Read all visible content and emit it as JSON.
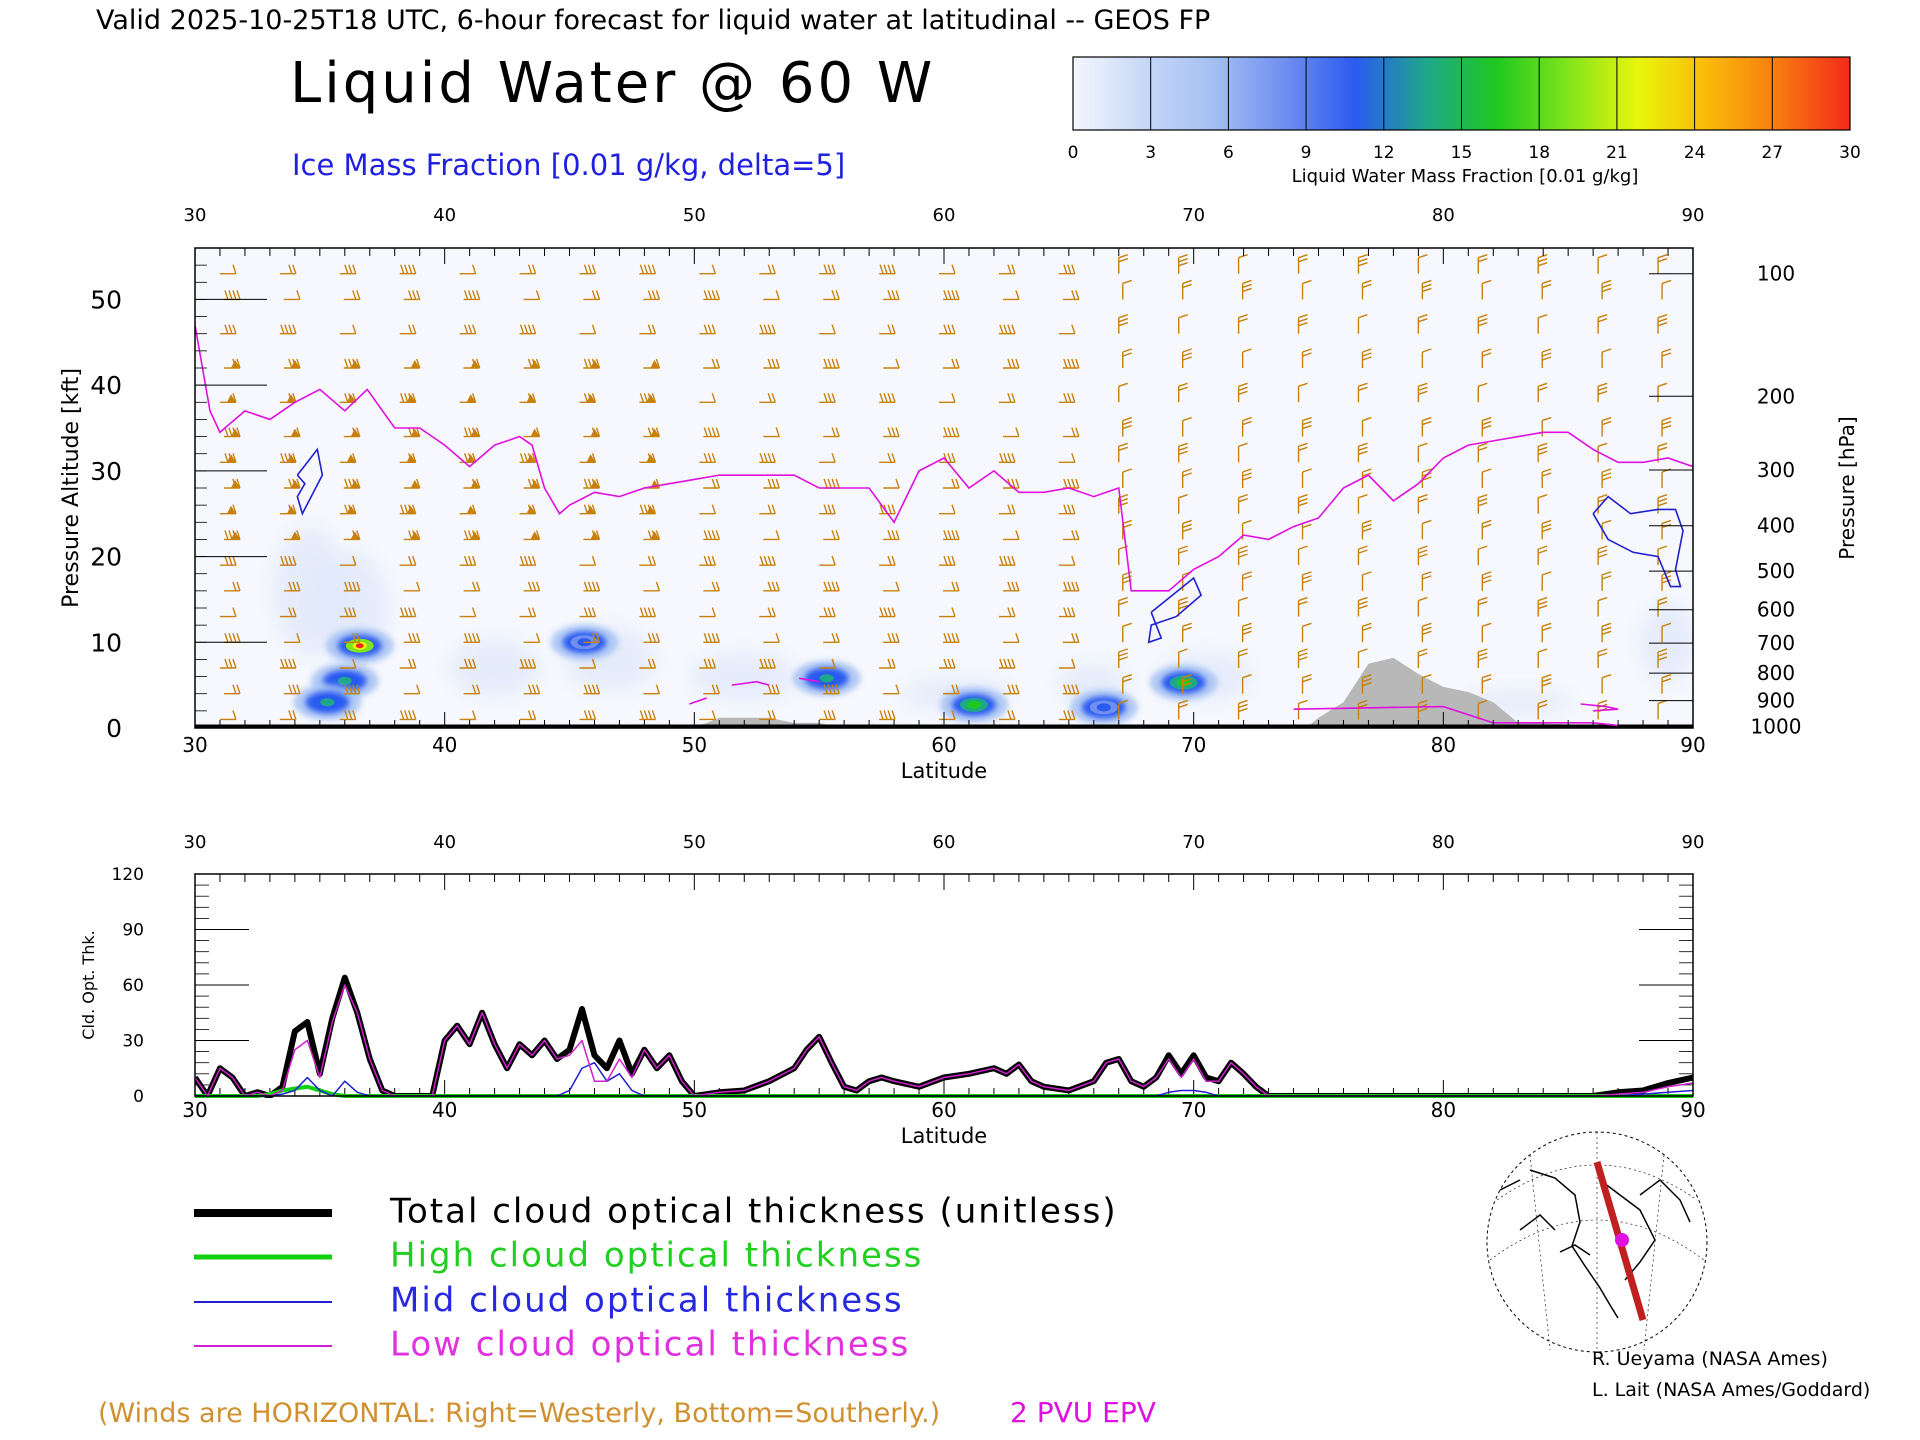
{
  "header": {
    "valid_line": "Valid 2025-10-25T18 UTC, 6-hour forecast for liquid water at latitudinal -- GEOS FP",
    "title": "Liquid Water @ 60 W",
    "subtitle": "Ice Mass Fraction [0.01 g/kg, delta=5]"
  },
  "colorbar": {
    "ticks": [
      "0",
      "3",
      "6",
      "9",
      "12",
      "15",
      "18",
      "21",
      "24",
      "27",
      "30"
    ],
    "label": "Liquid Water Mass Fraction [0.01 g/kg]",
    "colors": [
      "#f4f6fd",
      "#c8d8f7",
      "#a3bff3",
      "#6f8ef0",
      "#2a5bf0",
      "#1ea88a",
      "#1ec81e",
      "#7fe41c",
      "#e8f60a",
      "#fbb80a",
      "#f77a10",
      "#f42a1a"
    ]
  },
  "colors": {
    "tropopause": "#e010e0",
    "ice_contour": "#2020d0",
    "wind_barb": "#c8800a",
    "terrain": "#b8b8b8",
    "total": "#000000",
    "high": "#10d010",
    "mid": "#2020d0",
    "low": "#d020d0"
  },
  "chart_data": [
    {
      "type": "heatmap",
      "xlabel": "Latitude",
      "ylabel_left": "Pressure Altitude [kft]",
      "ylabel_right": "Pressure [hPa]",
      "xlim": [
        30,
        90
      ],
      "ylim": [
        0,
        56
      ],
      "x_ticks": [
        "30",
        "40",
        "50",
        "60",
        "70",
        "80",
        "90"
      ],
      "y_ticks": [
        "0",
        "10",
        "20",
        "30",
        "40",
        "50"
      ],
      "pressure_ticks": [
        {
          "hpa": "100",
          "kft": 53
        },
        {
          "hpa": "200",
          "kft": 38.7
        },
        {
          "hpa": "300",
          "kft": 30.1
        },
        {
          "hpa": "400",
          "kft": 23.6
        },
        {
          "hpa": "500",
          "kft": 18.3
        },
        {
          "hpa": "600",
          "kft": 13.8
        },
        {
          "hpa": "700",
          "kft": 9.9
        },
        {
          "hpa": "800",
          "kft": 6.4
        },
        {
          "hpa": "900",
          "kft": 3.2
        },
        {
          "hpa": "1000",
          "kft": 0.2
        }
      ],
      "liquid_water_blobs": [
        {
          "lat": 36.6,
          "kft": 9.6,
          "value": 22
        },
        {
          "lat": 36.0,
          "kft": 5.5,
          "value": 14
        },
        {
          "lat": 35.3,
          "kft": 3.0,
          "value": 14
        },
        {
          "lat": 45.6,
          "kft": 10.0,
          "value": 11
        },
        {
          "lat": 55.3,
          "kft": 5.8,
          "value": 14
        },
        {
          "lat": 61.2,
          "kft": 2.7,
          "value": 15
        },
        {
          "lat": 66.4,
          "kft": 2.4,
          "value": 10
        },
        {
          "lat": 69.6,
          "kft": 5.3,
          "value": 16
        }
      ],
      "tropopause_2pvu": {
        "lat": [
          30,
          30.6,
          31,
          32,
          33,
          34,
          35,
          36,
          36.9,
          38,
          39,
          40,
          41,
          42,
          43,
          43.5,
          44,
          44.6,
          45,
          46,
          47,
          48,
          49,
          50,
          51,
          52,
          53,
          54,
          55,
          56,
          57,
          58,
          59,
          60,
          61,
          62,
          63,
          64,
          65,
          66,
          67,
          67.5,
          68,
          69,
          70,
          71,
          72,
          73,
          74,
          75,
          76,
          77,
          78,
          79,
          80,
          81,
          82,
          83,
          84,
          85,
          86,
          87,
          88,
          89,
          90
        ],
        "kft": [
          47,
          37,
          34.5,
          37,
          36,
          38,
          39.5,
          37,
          39.5,
          35,
          35,
          33,
          30.5,
          33,
          34,
          33,
          28,
          25,
          26,
          27.5,
          27,
          28,
          28.5,
          29,
          29.5,
          29.5,
          29.5,
          29.5,
          28,
          28,
          28,
          24,
          30,
          31.5,
          28,
          30,
          27.5,
          27.5,
          28,
          27,
          28,
          16,
          16,
          16,
          18.5,
          20,
          22.5,
          22,
          23.5,
          24.5,
          28,
          29.5,
          26.5,
          28.5,
          31.5,
          33,
          33.5,
          34,
          34.5,
          34.5,
          32.5,
          31,
          31,
          31.5,
          30.5
        ]
      },
      "ice_contours": [
        {
          "lat": [
            34.1,
            34.9,
            35.1,
            34.3,
            34.1,
            34.4,
            34.1
          ],
          "kft": [
            29.5,
            32.5,
            29.5,
            25,
            27,
            28.5,
            29.5
          ]
        },
        {
          "lat": [
            68.3,
            70.0,
            70.3,
            69.3,
            68.3,
            68.2,
            68.7,
            68.3
          ],
          "kft": [
            13.5,
            17.5,
            15.5,
            13,
            12,
            10,
            10.5,
            13.5
          ]
        },
        {
          "lat": [
            86,
            86.6,
            87.5,
            88.6,
            89.3,
            89.6,
            89.3,
            89.5,
            89.1,
            88.6,
            87.6,
            86.6,
            86
          ],
          "kft": [
            25,
            27,
            25,
            25.5,
            25.5,
            23,
            18.5,
            16.5,
            16.5,
            20,
            20.5,
            22,
            25
          ]
        }
      ],
      "terrain": {
        "lat": [
          30,
          49.8,
          49.8,
          50.5,
          51,
          53,
          54,
          55,
          55.5,
          56,
          59,
          74,
          74.5,
          75,
          76,
          77,
          78,
          79,
          80,
          81,
          82,
          83,
          90
        ],
        "kft": [
          0,
          0,
          0,
          0.6,
          1.2,
          1.2,
          0.6,
          0.6,
          0.3,
          0.3,
          0,
          0,
          0,
          1.2,
          3.0,
          7.5,
          8.2,
          6.3,
          4.8,
          4.2,
          3.0,
          0.6,
          0
        ]
      }
    },
    {
      "type": "line",
      "xlabel": "Latitude",
      "ylabel": "Cld. Opt. Thk.",
      "xlim": [
        30,
        90
      ],
      "ylim": [
        0,
        120
      ],
      "x_ticks": [
        "30",
        "40",
        "50",
        "60",
        "70",
        "80",
        "90"
      ],
      "y_ticks": [
        "0",
        "30",
        "60",
        "90",
        "120"
      ],
      "x": [
        30,
        30.5,
        31,
        31.5,
        32,
        32.5,
        33,
        33.5,
        34,
        34.5,
        35,
        35.5,
        36,
        36.5,
        37,
        37.5,
        38,
        38.5,
        39,
        39.5,
        40,
        40.5,
        41,
        41.5,
        42,
        42.5,
        43,
        43.5,
        44,
        44.5,
        45,
        45.5,
        46,
        46.5,
        47,
        47.5,
        48,
        48.5,
        49,
        49.5,
        50,
        51,
        52,
        53,
        54,
        54.5,
        55,
        55.5,
        56,
        56.5,
        57,
        57.5,
        58,
        59,
        60,
        61,
        62,
        62.5,
        63,
        63.5,
        64,
        65,
        66,
        66.5,
        67,
        67.5,
        68,
        68.5,
        69,
        69.5,
        70,
        70.5,
        71,
        71.5,
        72,
        72.5,
        73,
        74,
        75,
        80,
        85,
        86,
        87,
        88,
        89,
        90
      ],
      "series": [
        {
          "name": "Total cloud optical thickness (unitless)",
          "values": [
            10,
            0,
            15,
            10,
            0,
            2,
            0,
            5,
            35,
            40,
            12,
            42,
            64,
            45,
            20,
            3,
            0,
            0,
            0,
            0,
            30,
            38,
            28,
            45,
            28,
            15,
            28,
            22,
            30,
            20,
            25,
            47,
            22,
            15,
            30,
            12,
            25,
            15,
            22,
            8,
            0,
            2,
            3,
            8,
            15,
            25,
            32,
            18,
            5,
            3,
            8,
            10,
            8,
            5,
            10,
            12,
            15,
            12,
            17,
            8,
            5,
            3,
            8,
            18,
            20,
            8,
            5,
            10,
            22,
            12,
            22,
            10,
            8,
            18,
            12,
            5,
            0,
            0,
            0,
            0,
            0,
            0,
            2,
            3,
            7,
            10
          ]
        },
        {
          "name": "High cloud optical thickness",
          "values": [
            0,
            0,
            0,
            0,
            0,
            0,
            1,
            3,
            4,
            5,
            3,
            1,
            0,
            0,
            0,
            0,
            0,
            0,
            0,
            0,
            0,
            0,
            0,
            0,
            0,
            0,
            0,
            0,
            0,
            0,
            0,
            0,
            0,
            0,
            0,
            0,
            0,
            0,
            0,
            0,
            0,
            0,
            0,
            0,
            0,
            0,
            0,
            0,
            0,
            0,
            0,
            0,
            0,
            0,
            0,
            0,
            0,
            0,
            0,
            0,
            0,
            0,
            0,
            0,
            0,
            0,
            0,
            0,
            0,
            0,
            0,
            0,
            0,
            0,
            0,
            0,
            0,
            0,
            0,
            0,
            0,
            0,
            0,
            0,
            0,
            0
          ]
        },
        {
          "name": "Mid cloud optical thickness",
          "values": [
            0,
            0,
            0,
            0,
            0,
            0,
            0,
            1,
            3,
            10,
            3,
            0,
            8,
            2,
            0,
            0,
            0,
            0,
            0,
            0,
            0,
            0,
            0,
            0,
            0,
            0,
            0,
            0,
            0,
            0,
            3,
            15,
            18,
            8,
            12,
            3,
            0,
            0,
            0,
            0,
            0,
            0,
            0,
            0,
            0,
            0,
            0,
            0,
            0,
            0,
            0,
            0,
            0,
            0,
            0,
            0,
            0,
            0,
            0,
            0,
            0,
            0,
            0,
            0,
            0,
            0,
            0,
            0,
            2,
            3,
            3,
            2,
            0,
            0,
            0,
            0,
            0,
            0,
            0,
            0,
            0,
            0,
            0,
            1,
            2,
            3
          ]
        },
        {
          "name": "Low cloud optical thickness",
          "values": [
            10,
            0,
            15,
            10,
            0,
            2,
            0,
            3,
            25,
            30,
            10,
            40,
            60,
            45,
            20,
            3,
            0,
            0,
            0,
            0,
            30,
            38,
            28,
            45,
            28,
            15,
            28,
            22,
            30,
            20,
            22,
            30,
            8,
            8,
            20,
            10,
            25,
            15,
            22,
            8,
            0,
            2,
            3,
            8,
            15,
            25,
            32,
            18,
            5,
            3,
            8,
            10,
            8,
            5,
            10,
            12,
            15,
            12,
            17,
            8,
            5,
            3,
            8,
            18,
            20,
            8,
            5,
            10,
            20,
            10,
            20,
            8,
            8,
            18,
            12,
            5,
            0,
            0,
            0,
            0,
            0,
            0,
            1,
            2,
            5,
            7
          ]
        }
      ]
    }
  ],
  "legend": {
    "total": "Total cloud optical thickness (unitless)",
    "high": "High cloud optical thickness",
    "mid": "Mid cloud optical thickness",
    "low": "Low cloud optical thickness"
  },
  "footer": {
    "winds_note": "(Winds are HORIZONTAL: Right=Westerly, Bottom=Southerly.)",
    "epv_label": "2 PVU EPV",
    "credit1": "R. Ueyama (NASA Ames)",
    "credit2": "L. Lait (NASA Ames/Goddard)"
  }
}
